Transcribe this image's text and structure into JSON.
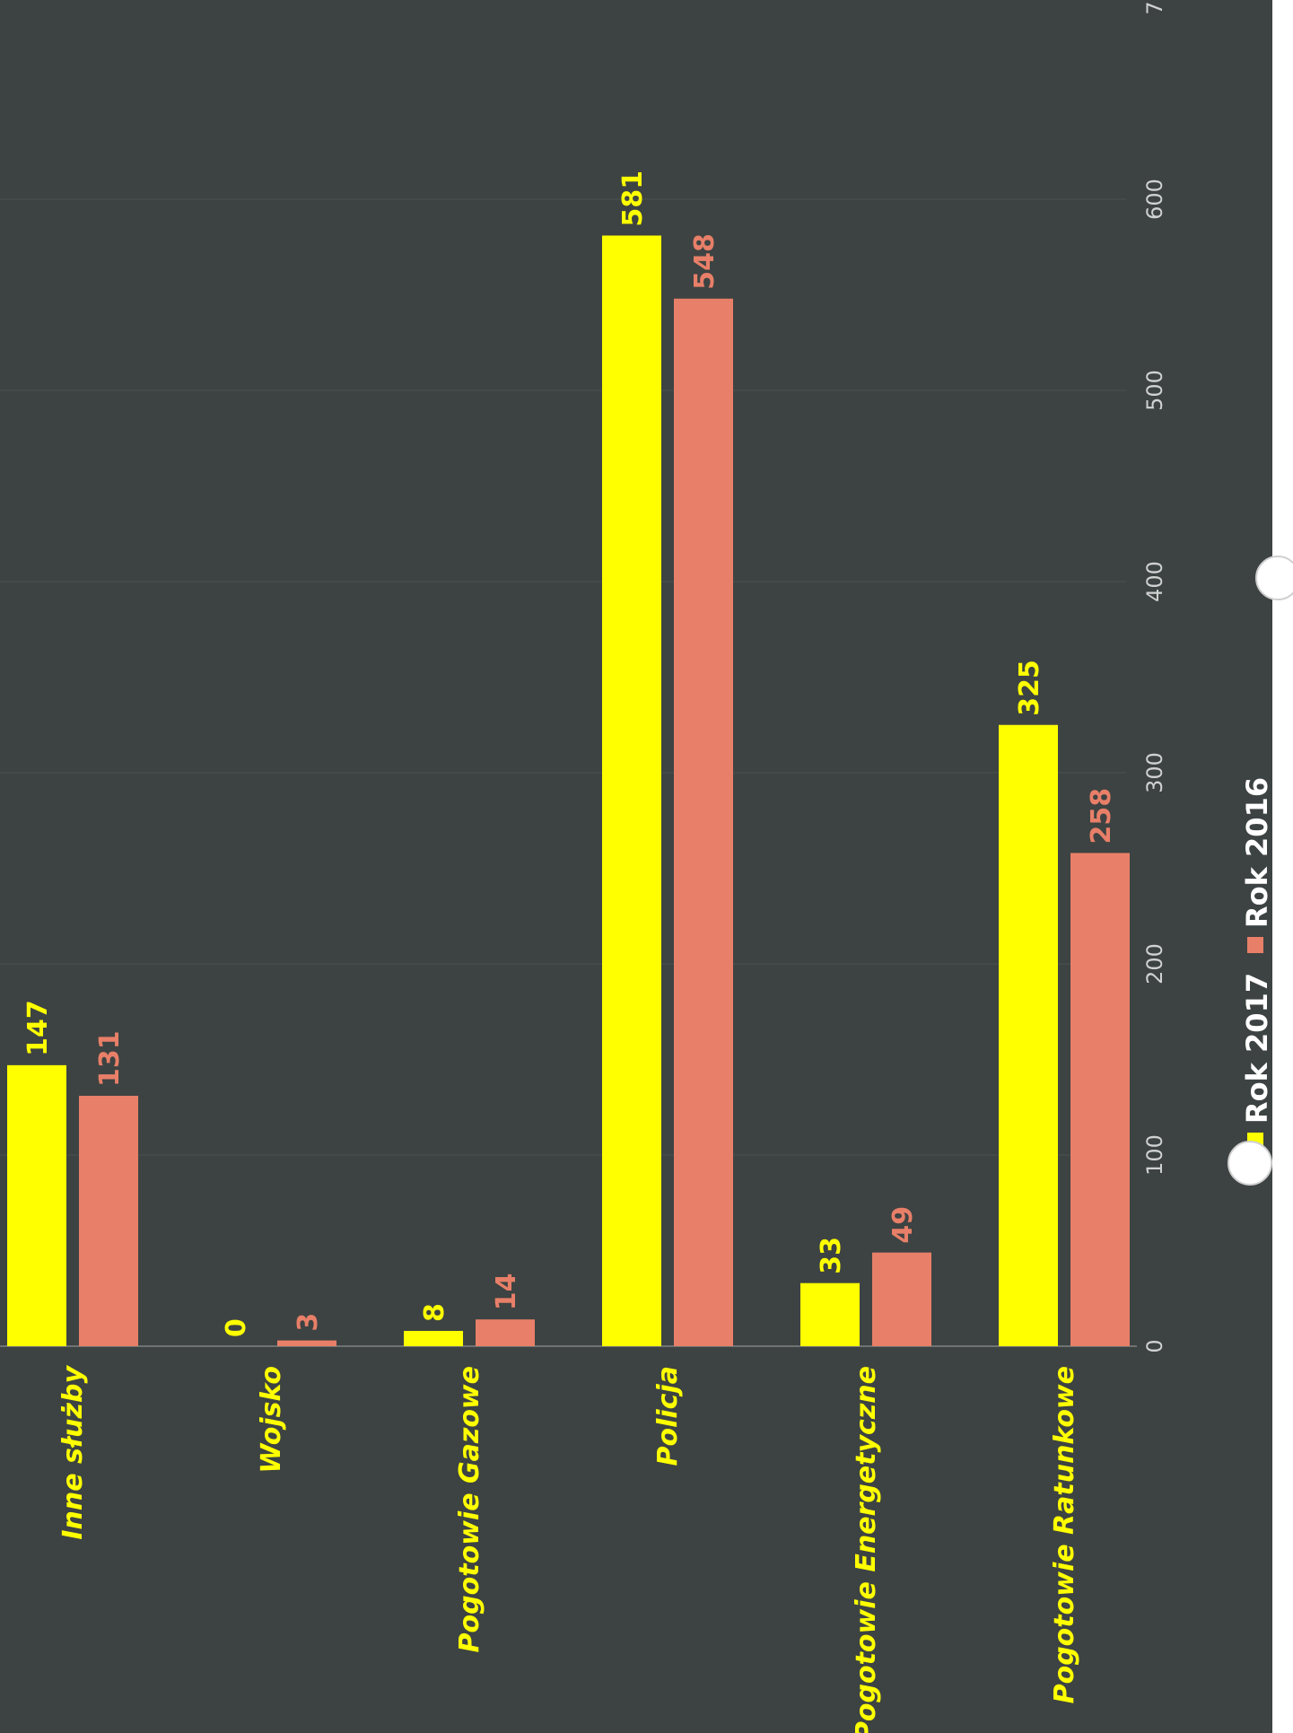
{
  "chart_data": {
    "type": "bar",
    "orientation": "horizontal",
    "categories": [
      "Inne służby",
      "Wojsko",
      "Pogotowie Gazowe",
      "Policja",
      "Pogotowie Energetyczne",
      "Pogotowie Ratunkowe"
    ],
    "series": [
      {
        "name": "Rok 2017",
        "values": [
          147,
          0,
          8,
          581,
          33,
          325
        ],
        "color": "#ffff00"
      },
      {
        "name": "Rok 2016",
        "values": [
          131,
          3,
          14,
          548,
          49,
          258
        ],
        "color": "#e87f68"
      }
    ],
    "xticks": [
      0,
      100,
      200,
      300,
      400,
      500,
      600,
      "7"
    ],
    "xlim": [
      0,
      700
    ],
    "grid": true,
    "legend_position": "bottom"
  }
}
